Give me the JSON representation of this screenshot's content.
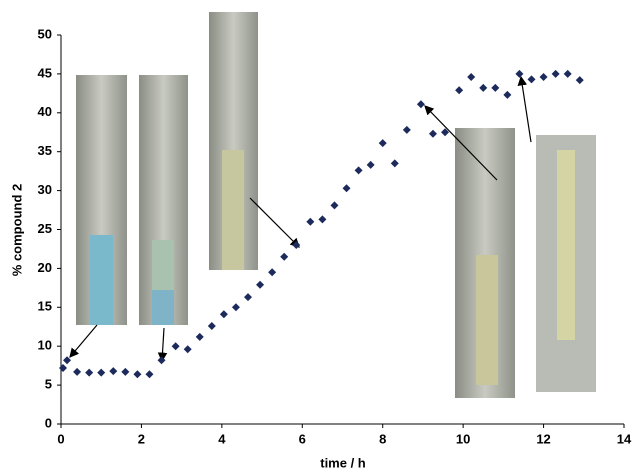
{
  "chart_data": {
    "type": "scatter",
    "xlabel": "time / h",
    "ylabel": "% compound 2",
    "x": [
      0.05,
      0.15,
      0.4,
      0.7,
      1.0,
      1.3,
      1.6,
      1.9,
      2.2,
      2.5,
      2.85,
      3.15,
      3.45,
      3.75,
      4.05,
      4.35,
      4.65,
      4.95,
      5.25,
      5.55,
      5.85,
      6.2,
      6.5,
      6.8,
      7.1,
      7.4,
      7.7,
      8.0,
      8.3,
      8.6,
      8.95,
      9.25,
      9.55,
      9.9,
      10.2,
      10.5,
      10.8,
      11.1,
      11.4,
      11.7,
      12.0,
      12.3,
      12.6,
      12.9
    ],
    "values": [
      7.2,
      8.2,
      6.7,
      6.6,
      6.6,
      6.8,
      6.7,
      6.4,
      6.4,
      8.2,
      10.0,
      9.6,
      11.2,
      12.6,
      14.1,
      15.0,
      16.3,
      17.9,
      19.5,
      21.5,
      23.0,
      26.0,
      26.3,
      28.1,
      30.3,
      32.6,
      33.3,
      36.1,
      33.5,
      37.8,
      41.1,
      37.3,
      37.5,
      42.9,
      44.6,
      43.2,
      43.2,
      42.3,
      45.0,
      44.3,
      44.6,
      45.0,
      45.0,
      44.2
    ],
    "color": "#1c2a5c",
    "xlim": [
      0,
      14
    ],
    "xticks": [
      0,
      2,
      4,
      6,
      8,
      10,
      12,
      14
    ],
    "ylim": [
      0,
      50
    ],
    "yticks": [
      0,
      5,
      10,
      15,
      20,
      25,
      30,
      35,
      40,
      45,
      50
    ]
  }
}
